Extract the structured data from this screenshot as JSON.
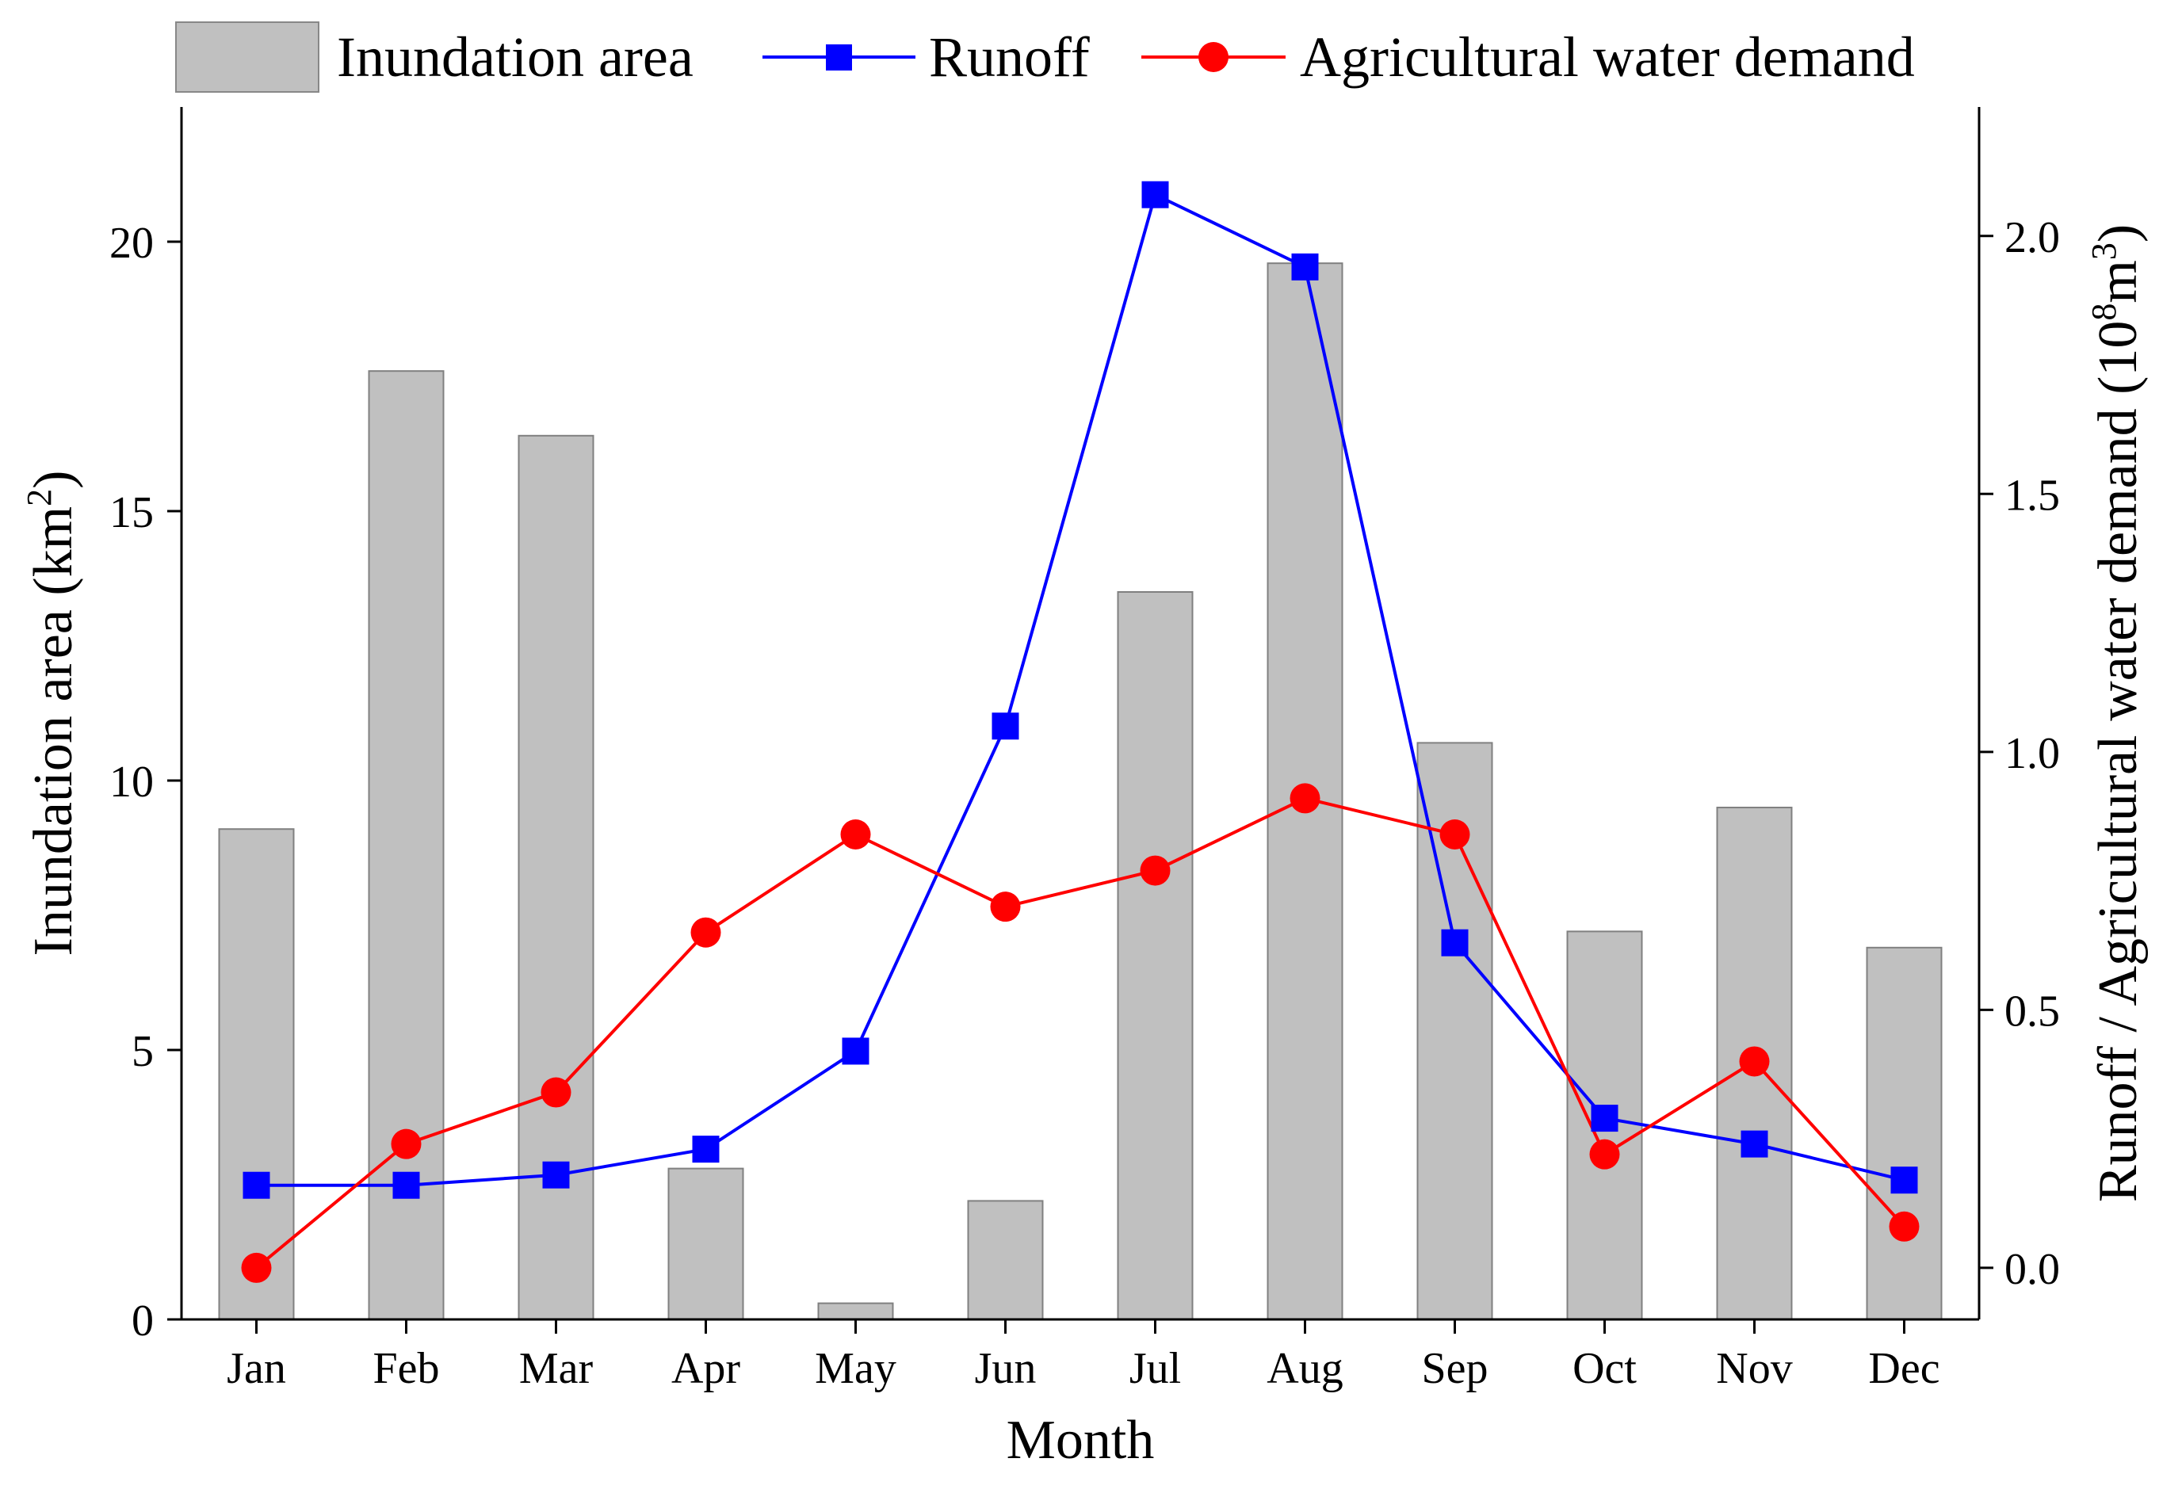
{
  "chart_data": {
    "type": "bar",
    "categories": [
      "Jan",
      "Feb",
      "Mar",
      "Apr",
      "May",
      "Jun",
      "Jul",
      "Aug",
      "Sep",
      "Oct",
      "Nov",
      "Dec"
    ],
    "series": [
      {
        "name": "Inundation area",
        "kind": "bar",
        "axis": "left",
        "color": "#c0c0c0",
        "values": [
          9.1,
          17.6,
          16.4,
          2.8,
          0.3,
          2.2,
          13.5,
          19.6,
          10.7,
          7.2,
          9.5,
          6.9
        ]
      },
      {
        "name": "Runoff",
        "kind": "line",
        "marker": "square",
        "axis": "right",
        "color": "#0000ff",
        "values": [
          0.16,
          0.16,
          0.18,
          0.23,
          0.42,
          1.05,
          2.08,
          1.94,
          0.63,
          0.29,
          0.24,
          0.17
        ]
      },
      {
        "name": "Agricultural water demand",
        "kind": "line",
        "marker": "circle",
        "axis": "right",
        "color": "#ff0000",
        "values": [
          0.0,
          0.24,
          0.34,
          0.65,
          0.84,
          0.7,
          0.77,
          0.91,
          0.84,
          0.22,
          0.4,
          0.08
        ]
      }
    ],
    "xlabel": "Month",
    "ylabel_left_base": "Inundation area (km",
    "ylabel_left_sup": "2",
    "ylabel_left_end": ")",
    "ylabel_right_base": "Runoff / Agricultural water demand (10",
    "ylabel_right_sup": "8",
    "ylabel_right_mid": "m",
    "ylabel_right_sup2": "3",
    "ylabel_right_end": ")",
    "ylim_left": [
      0,
      22.5
    ],
    "ylim_right": [
      -0.1,
      2.25
    ],
    "yticks_left": [
      "0",
      "5",
      "10",
      "15",
      "20"
    ],
    "yticks_right": [
      "0.0",
      "0.5",
      "1.0",
      "1.5",
      "2.0"
    ],
    "legend_position": "top"
  }
}
